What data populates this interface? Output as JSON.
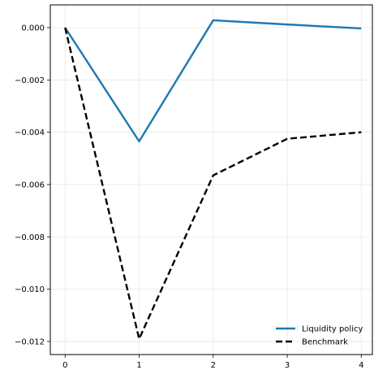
{
  "chart_data": {
    "type": "line",
    "title": "",
    "xlabel": "",
    "ylabel": "",
    "x": [
      0,
      1,
      2,
      3,
      4
    ],
    "xlim": [
      -0.2,
      4.15
    ],
    "ylim": [
      -0.0125,
      0.00087
    ],
    "xticks": [
      0,
      1,
      2,
      3,
      4
    ],
    "xtick_labels": [
      "0",
      "1",
      "2",
      "3",
      "4"
    ],
    "yticks": [
      0.0,
      -0.002,
      -0.004,
      -0.006,
      -0.008,
      -0.01,
      -0.012
    ],
    "ytick_labels": [
      "0.000",
      "−0.002",
      "−0.004",
      "−0.006",
      "−0.008",
      "−0.010",
      "−0.012"
    ],
    "grid": true,
    "legend_position": "bottom-right",
    "series": [
      {
        "name": "Liquidity policy",
        "values": [
          0.0,
          -0.00435,
          0.00028,
          0.00012,
          -3e-05
        ],
        "color": "#1f77b4",
        "style": "solid"
      },
      {
        "name": "Benchmark",
        "values": [
          0.0,
          -0.0119,
          -0.00565,
          -0.00425,
          -0.004
        ],
        "color": "#000000",
        "style": "dashed"
      }
    ]
  }
}
